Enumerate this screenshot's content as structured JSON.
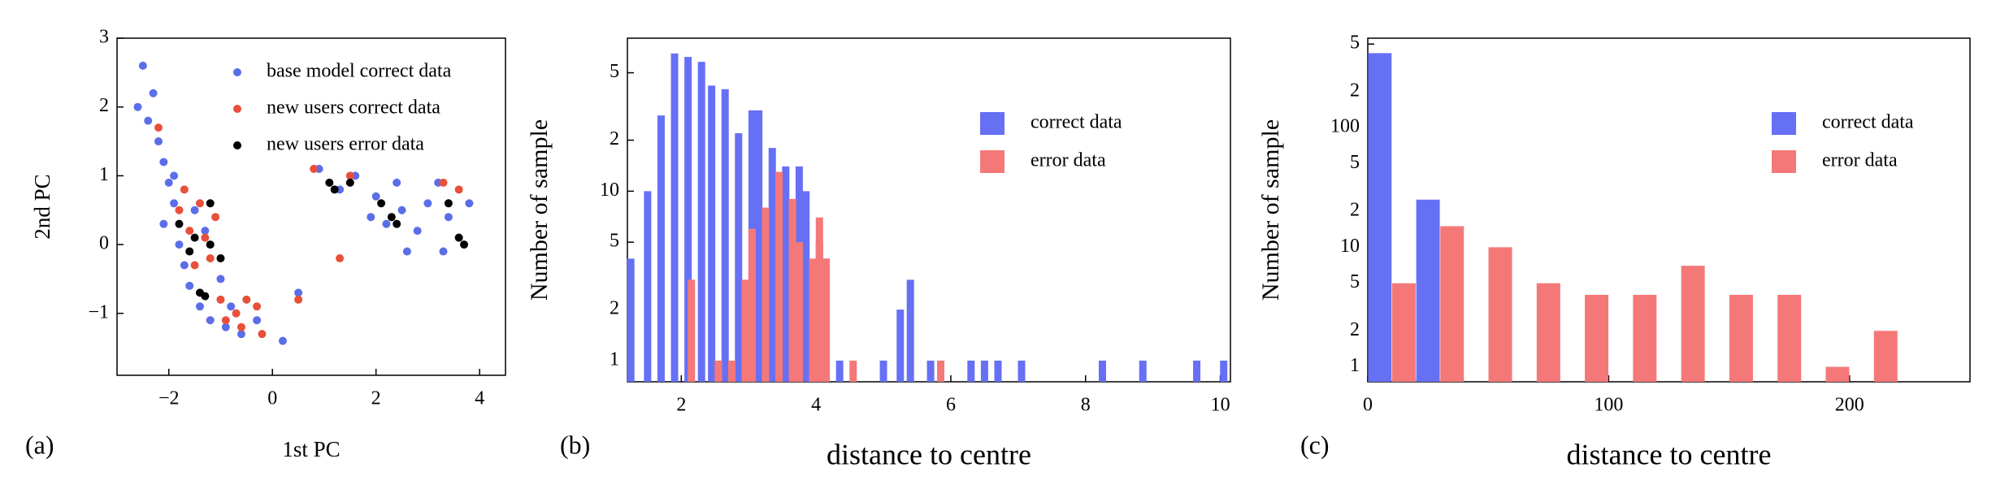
{
  "chart_data": [
    {
      "type": "scatter",
      "panel_label": "(a)",
      "xlabel": "1st PC",
      "ylabel": "2nd PC",
      "xlim": [
        -3,
        4.5
      ],
      "ylim": [
        -1.9,
        3
      ],
      "xticks": [
        {
          "value": -2,
          "label": "−2"
        },
        0,
        2,
        4
      ],
      "yticks": [
        {
          "value": -1,
          "label": "−1"
        },
        0,
        1,
        2,
        3
      ],
      "legend": "upper right",
      "series": [
        {
          "name": "base model correct data",
          "color": "#5b6ee8",
          "x": [
            -2.5,
            -2.3,
            -2.4,
            -2.2,
            -2.1,
            -2.0,
            -1.9,
            -2.1,
            -1.8,
            -1.7,
            -1.6,
            -1.4,
            -1.2,
            -0.9,
            -0.6,
            -0.3,
            0.2,
            0.5,
            -1.5,
            -1.3,
            -1.0,
            -0.8,
            -2.6,
            -1.9,
            0.9,
            1.3,
            1.6,
            2.0,
            2.2,
            2.5,
            2.8,
            2.6,
            3.0,
            3.2,
            3.4,
            3.6,
            3.8,
            3.3,
            2.4,
            1.9
          ],
          "values": [
            2.6,
            2.2,
            1.8,
            1.5,
            1.2,
            0.9,
            0.6,
            0.3,
            0,
            -0.3,
            -0.6,
            -0.9,
            -1.1,
            -1.2,
            -1.3,
            -1.1,
            -1.4,
            -0.7,
            0.5,
            0.2,
            -0.5,
            -0.9,
            2.0,
            1.0,
            1.1,
            0.8,
            1.0,
            0.7,
            0.3,
            0.5,
            0.2,
            -0.1,
            0.6,
            0.9,
            0.4,
            0.1,
            0.6,
            -0.1,
            0.9,
            0.4
          ]
        },
        {
          "name": "new users correct data",
          "color": "#e8503a",
          "x": [
            -1.8,
            -1.6,
            -1.3,
            -1.5,
            -1.7,
            -1.1,
            -1.4,
            -1.2,
            -0.9,
            -0.7,
            -0.5,
            -0.3,
            -0.6,
            0.5,
            -0.2,
            -2.2,
            0.8,
            1.5,
            3.3,
            3.6,
            1.3,
            -1.0
          ],
          "values": [
            0.5,
            0.2,
            0.1,
            -0.3,
            0.8,
            0.4,
            0.6,
            -0.2,
            -1.1,
            -1.0,
            -0.8,
            -0.9,
            -1.2,
            -0.8,
            -1.3,
            1.7,
            1.1,
            1.0,
            0.9,
            0.8,
            -0.2,
            -0.8
          ]
        },
        {
          "name": "new users error data",
          "color": "#000000",
          "x": [
            -1.8,
            -1.5,
            -1.2,
            -1.6,
            -1.4,
            -1.3,
            -1.0,
            1.1,
            1.2,
            1.5,
            2.1,
            2.3,
            2.4,
            3.4,
            3.6,
            3.7,
            -1.2
          ],
          "values": [
            0.3,
            0.1,
            0.0,
            -0.1,
            -0.7,
            -0.75,
            -0.2,
            0.9,
            0.8,
            0.9,
            0.6,
            0.4,
            0.3,
            0.6,
            0.1,
            0.0,
            0.6
          ]
        }
      ]
    },
    {
      "type": "bar",
      "panel_label": "(b)",
      "xlabel": "distance to centre",
      "ylabel": "Number of sample",
      "ylog": true,
      "xlim": [
        1.2,
        10.15
      ],
      "ylim": [
        0.75,
        80
      ],
      "xticks": [
        2,
        4,
        6,
        8,
        10
      ],
      "yticks": [
        1,
        2,
        5,
        10,
        {
          "value": 20,
          "label": "2"
        },
        {
          "value": 50,
          "label": "5"
        }
      ],
      "legend": "upper right",
      "x": [
        1.25,
        1.5,
        1.7,
        1.9,
        2.1,
        2.15,
        2.3,
        2.45,
        2.55,
        2.65,
        2.75,
        2.85,
        2.95,
        3.05,
        3.15,
        3.25,
        3.35,
        3.45,
        3.55,
        3.65,
        3.75,
        3.85,
        3.95,
        4.05,
        4.15,
        4.35,
        4.55,
        5.0,
        5.25,
        5.4,
        5.7,
        5.85,
        6.3,
        6.5,
        6.7,
        7.05,
        8.25,
        8.85,
        9.65,
        10.05
      ],
      "series": [
        {
          "name": "correct data",
          "color": "#6670f5",
          "values": [
            4,
            10,
            28,
            65,
            62,
            null,
            58,
            42,
            null,
            40,
            null,
            22,
            null,
            30,
            30,
            null,
            18,
            null,
            14,
            null,
            14,
            10,
            null,
            5,
            4,
            1,
            null,
            1,
            2,
            3,
            1,
            null,
            1,
            1,
            1,
            1,
            1,
            1,
            1,
            1
          ]
        },
        {
          "name": "error data",
          "color": "#f57878",
          "values": [
            null,
            null,
            null,
            null,
            null,
            3,
            null,
            null,
            1,
            null,
            1,
            null,
            3,
            6,
            null,
            8,
            null,
            13,
            null,
            9,
            5,
            null,
            4,
            7,
            4,
            null,
            1,
            null,
            null,
            null,
            null,
            1,
            null,
            null,
            null,
            null,
            null,
            null,
            null,
            null
          ]
        }
      ]
    },
    {
      "type": "bar",
      "panel_label": "(c)",
      "xlabel": "distance to centre",
      "ylabel": "Number of sample",
      "ylog": true,
      "xlim": [
        0,
        250
      ],
      "ylim": [
        0.75,
        560
      ],
      "xticks": [
        0,
        100,
        200
      ],
      "yticks": [
        1,
        2,
        5,
        10,
        {
          "value": 20,
          "label": "2"
        },
        {
          "value": 50,
          "label": "5"
        },
        100,
        {
          "value": 200,
          "label": "2"
        },
        {
          "value": 500,
          "label": "5"
        }
      ],
      "legend": "upper right",
      "x": [
        5,
        15,
        25,
        35,
        55,
        75,
        95,
        115,
        135,
        155,
        175,
        195,
        215
      ],
      "series": [
        {
          "name": "correct data",
          "color": "#6670f5",
          "values": [
            420,
            null,
            25,
            null,
            null,
            null,
            null,
            null,
            null,
            null,
            null,
            null,
            null
          ]
        },
        {
          "name": "error data",
          "color": "#f57878",
          "values": [
            null,
            5,
            null,
            15,
            10,
            5,
            4,
            4,
            7,
            4,
            4,
            1,
            2
          ]
        }
      ]
    }
  ]
}
